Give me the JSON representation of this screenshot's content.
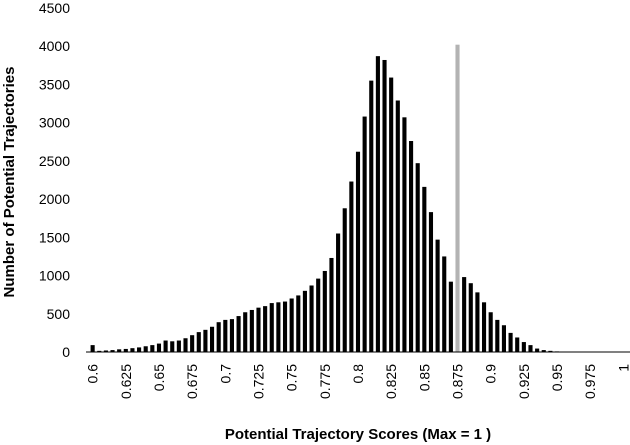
{
  "chart_data": {
    "type": "bar",
    "title": "",
    "xlabel": "Potential Trajectory Scores (Max = 1 )",
    "ylabel": "Number of Potential Trajectories",
    "ylim": [
      0,
      4500
    ],
    "yticks": [
      0,
      500,
      1000,
      1500,
      2000,
      2500,
      3000,
      3500,
      4000,
      4500
    ],
    "xlim": [
      0.595,
      1.005
    ],
    "xticks": [
      "0.6",
      "0.625",
      "0.65",
      "0.675",
      "0.7",
      "0.725",
      "0.75",
      "0.775",
      "0.8",
      "0.825",
      "0.85",
      "0.875",
      "0.9",
      "0.925",
      "0.95",
      "0.975",
      "1"
    ],
    "bar_color": "#000000",
    "highlight_color": "#b3b3b3",
    "grid": false,
    "legend": "none",
    "series": [
      {
        "x": [
          0.6,
          0.605,
          0.61,
          0.615,
          0.62,
          0.625,
          0.63,
          0.635,
          0.64,
          0.645,
          0.65,
          0.655,
          0.66,
          0.665,
          0.67,
          0.675,
          0.68,
          0.685,
          0.69,
          0.695,
          0.7,
          0.705,
          0.71,
          0.715,
          0.72,
          0.725,
          0.73,
          0.735,
          0.74,
          0.745,
          0.75,
          0.755,
          0.76,
          0.765,
          0.77,
          0.775,
          0.78,
          0.785,
          0.79,
          0.795,
          0.8,
          0.805,
          0.81,
          0.815,
          0.82,
          0.825,
          0.83,
          0.835,
          0.84,
          0.845,
          0.85,
          0.855,
          0.86,
          0.865,
          0.87,
          0.875,
          0.88,
          0.885,
          0.89,
          0.895,
          0.9,
          0.905,
          0.91,
          0.915,
          0.92,
          0.925,
          0.93,
          0.935,
          0.94,
          0.945,
          0.95,
          0.955,
          0.96,
          0.965,
          0.97,
          0.975,
          0.98,
          0.985,
          0.99,
          0.995,
          1.0
        ],
        "values": [
          90,
          15,
          20,
          25,
          35,
          40,
          50,
          60,
          75,
          90,
          110,
          150,
          140,
          150,
          180,
          220,
          260,
          290,
          330,
          390,
          420,
          430,
          470,
          520,
          550,
          580,
          600,
          640,
          650,
          660,
          700,
          740,
          800,
          870,
          960,
          1060,
          1230,
          1550,
          1880,
          2230,
          2620,
          3080,
          3550,
          3870,
          3820,
          3590,
          3290,
          3070,
          2760,
          2470,
          2160,
          1830,
          1470,
          1250,
          920,
          4020,
          980,
          900,
          780,
          650,
          520,
          420,
          350,
          250,
          190,
          130,
          90,
          45,
          25,
          15,
          8,
          5,
          4,
          3,
          2,
          2,
          2,
          2,
          2,
          2,
          2
        ],
        "highlight_index": 55
      }
    ]
  }
}
